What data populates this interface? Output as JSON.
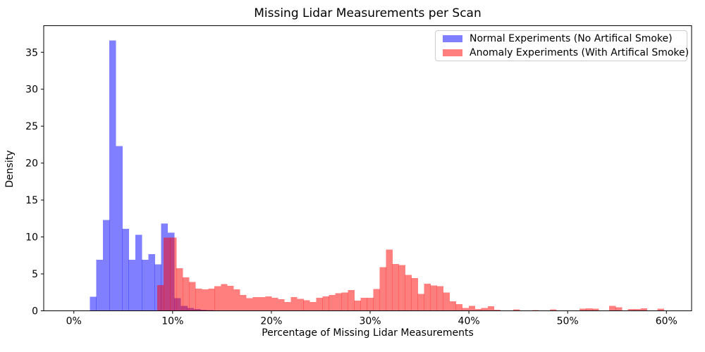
{
  "figure": {
    "title": "Missing Lidar Measurements per Scan",
    "xlabel": "Percentage of Missing Lidar Measurements",
    "ylabel": "Density",
    "background": "#ffffff",
    "spine_color": "#000000"
  },
  "legend": {
    "position": "upper right",
    "items": [
      {
        "label": "Normal Experiments (No Artifical Smoke)",
        "color": "#0000ff",
        "alpha": 0.5
      },
      {
        "label": "Anomaly Experiments (With Artifical Smoke)",
        "color": "#ff0000",
        "alpha": 0.5
      }
    ]
  },
  "chart_data": {
    "type": "bar",
    "subtype": "overlapping-histograms",
    "title": "Missing Lidar Measurements per Scan",
    "xlabel": "Percentage of Missing Lidar Measurements",
    "ylabel": "Density",
    "grid": false,
    "legend_position": "upper right",
    "xlim": [
      -3.05,
      62.55
    ],
    "ylim": [
      0,
      38.6
    ],
    "xtick_values": [
      0,
      10,
      20,
      30,
      40,
      50,
      60
    ],
    "xtick_labels": [
      "0%",
      "10%",
      "20%",
      "30%",
      "40%",
      "50%",
      "60%"
    ],
    "ytick_values": [
      0,
      5,
      10,
      15,
      20,
      25,
      30,
      35
    ],
    "ytick_labels": [
      "0",
      "5",
      "10",
      "15",
      "20",
      "25",
      "30",
      "35"
    ],
    "series": [
      {
        "name": "Normal Experiments (No Artifical Smoke)",
        "color": "#0000ff",
        "alpha": 0.5,
        "bin_width_pct": 0.658,
        "bars_x_height": [
          [
            1.62,
            1.9
          ],
          [
            2.28,
            6.9
          ],
          [
            2.93,
            12.3
          ],
          [
            3.59,
            36.6
          ],
          [
            4.25,
            22.3
          ],
          [
            4.91,
            11.1
          ],
          [
            5.56,
            6.9
          ],
          [
            6.22,
            10.3
          ],
          [
            6.88,
            6.9
          ],
          [
            7.54,
            7.65
          ],
          [
            8.2,
            6.3
          ],
          [
            8.85,
            11.8
          ],
          [
            9.51,
            10.6
          ],
          [
            10.17,
            1.7
          ],
          [
            10.83,
            0.65
          ],
          [
            11.49,
            0.4
          ],
          [
            12.14,
            0.25
          ],
          [
            12.8,
            0.15
          ],
          [
            13.46,
            0.1
          ],
          [
            14.12,
            0.05
          ]
        ]
      },
      {
        "name": "Anomaly Experiments (With Artifical Smoke)",
        "color": "#ff0000",
        "alpha": 0.5,
        "bin_width_pct": 0.644,
        "bars_x_height": [
          [
            8.45,
            3.5
          ],
          [
            9.09,
            9.9
          ],
          [
            9.74,
            9.9
          ],
          [
            10.38,
            5.75
          ],
          [
            11.03,
            4.55
          ],
          [
            11.67,
            3.9
          ],
          [
            12.31,
            3.0
          ],
          [
            12.96,
            2.9
          ],
          [
            13.6,
            3.0
          ],
          [
            14.24,
            3.35
          ],
          [
            14.89,
            3.6
          ],
          [
            15.53,
            3.4
          ],
          [
            16.17,
            2.9
          ],
          [
            16.82,
            2.15
          ],
          [
            17.46,
            1.7
          ],
          [
            18.1,
            1.85
          ],
          [
            18.75,
            1.85
          ],
          [
            19.39,
            1.95
          ],
          [
            20.03,
            1.75
          ],
          [
            20.68,
            1.55
          ],
          [
            21.32,
            1.2
          ],
          [
            21.96,
            1.85
          ],
          [
            22.61,
            1.6
          ],
          [
            23.25,
            1.45
          ],
          [
            23.89,
            1.2
          ],
          [
            24.54,
            1.75
          ],
          [
            25.18,
            1.95
          ],
          [
            25.82,
            2.15
          ],
          [
            26.47,
            2.4
          ],
          [
            27.11,
            2.5
          ],
          [
            27.75,
            2.8
          ],
          [
            28.4,
            1.4
          ],
          [
            29.04,
            1.75
          ],
          [
            29.68,
            1.75
          ],
          [
            30.33,
            2.95
          ],
          [
            30.97,
            5.9
          ],
          [
            31.61,
            8.3
          ],
          [
            32.26,
            6.35
          ],
          [
            32.9,
            6.2
          ],
          [
            33.54,
            4.85
          ],
          [
            34.19,
            4.45
          ],
          [
            34.83,
            2.3
          ],
          [
            35.47,
            3.65
          ],
          [
            36.12,
            3.45
          ],
          [
            36.76,
            3.35
          ],
          [
            37.4,
            2.5
          ],
          [
            38.05,
            1.3
          ],
          [
            38.69,
            0.9
          ],
          [
            39.33,
            0.4
          ],
          [
            39.98,
            0.65
          ],
          [
            40.62,
            0.25
          ],
          [
            41.26,
            0.4
          ],
          [
            41.91,
            0.6
          ],
          [
            42.55,
            0.15
          ],
          [
            44.5,
            0.2
          ],
          [
            46.4,
            0.1
          ],
          [
            48.2,
            0.2
          ],
          [
            51.2,
            0.3
          ],
          [
            51.85,
            0.35
          ],
          [
            52.5,
            0.3
          ],
          [
            54.2,
            0.65
          ],
          [
            54.85,
            0.5
          ],
          [
            56.1,
            0.25
          ],
          [
            56.75,
            0.25
          ],
          [
            57.4,
            0.35
          ],
          [
            59.1,
            0.3
          ]
        ]
      }
    ]
  }
}
